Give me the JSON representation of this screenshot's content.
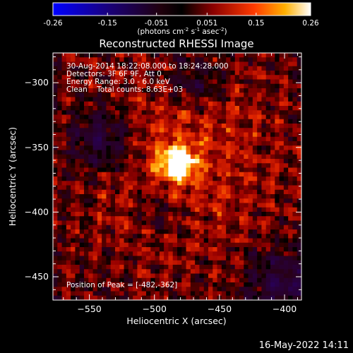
{
  "colorbar": {
    "ticks": [
      "-0.26",
      "-0.15",
      "-0.051",
      "0.051",
      "0.15",
      "0.26"
    ],
    "tick_values": [
      -0.26,
      -0.15,
      -0.051,
      0.051,
      0.15,
      0.26
    ],
    "range": [
      -0.26,
      0.26
    ],
    "units_main": "(photons cm",
    "units_sup1": "-2",
    "units_mid": " s",
    "units_sup2": "-1",
    "units_end": " asec",
    "units_sup3": "-2",
    "units_close": ")"
  },
  "overlay": {
    "line1": "30-Aug-2014 18:22:08.000 to 18:24:28.000",
    "line2": "Detectors: 3F 6F 9F, Att 0",
    "line3": "Energy Range: 3.0 - 6.0 keV",
    "line4": "Clean    Total counts: 8.63E+03",
    "peak": "Position of Peak = [-482,-362]"
  },
  "footer": {
    "timestamp": "16-May-2022 14:11"
  },
  "chart_data": {
    "type": "heatmap",
    "title": "Reconstructed RHESSI Image",
    "xlabel": "Heliocentric X (arcsec)",
    "ylabel": "Heliocentric Y (arcsec)",
    "xlim": [
      -578,
      -387
    ],
    "ylim": [
      -468,
      -277
    ],
    "x_ticks": [
      -550,
      -500,
      -450,
      -400
    ],
    "x_tick_labels": [
      "−550",
      "−500",
      "−450",
      "−400"
    ],
    "y_ticks": [
      -300,
      -350,
      -400,
      -450
    ],
    "y_tick_labels": [
      "−300",
      "−350",
      "−400",
      "−450"
    ],
    "peak": {
      "x": -482,
      "y": -362,
      "value": 0.26
    },
    "colormap": "black-red-yellow-white (negative: blue-purple)"
  }
}
